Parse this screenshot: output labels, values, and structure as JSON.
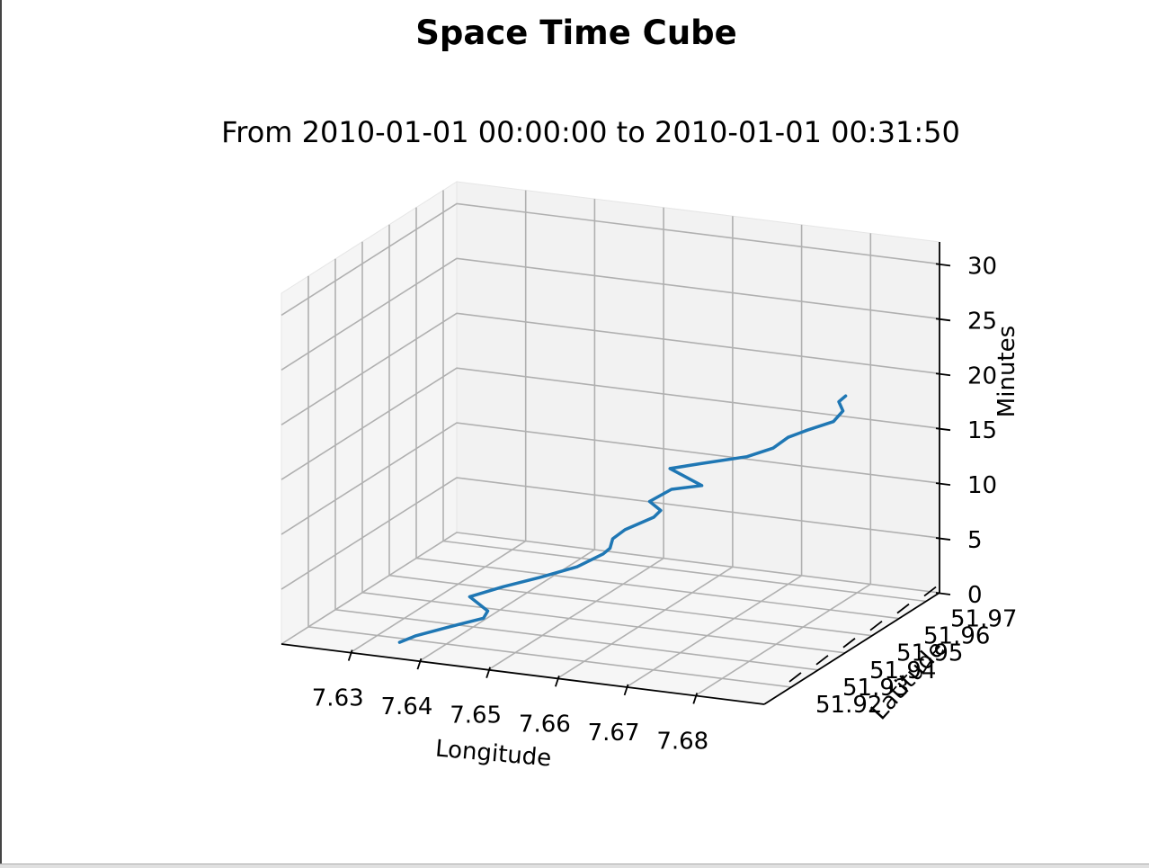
{
  "chart_data": {
    "type": "line",
    "title": "Space Time Cube",
    "subtitle": "From 2010-01-01 00:00:00 to 2010-01-01 00:31:50",
    "xlabel": "Longitude",
    "ylabel": "Latitude",
    "zlabel": "Minutes",
    "xticks": [
      "7.63",
      "7.64",
      "7.65",
      "7.66",
      "7.67",
      "7.68"
    ],
    "yticks": [
      "51.92",
      "51.93",
      "51.94",
      "51.95",
      "51.96",
      "51.97"
    ],
    "zticks": [
      "0",
      "5",
      "10",
      "15",
      "20",
      "25",
      "30"
    ],
    "xlim": [
      7.62,
      7.69
    ],
    "ylim": [
      51.91,
      51.975
    ],
    "zlim": [
      0,
      32
    ],
    "grid": true,
    "series": [
      {
        "color": "#1f77b4",
        "points": [
          [
            7.634,
            51.918,
            0.0
          ],
          [
            7.636,
            51.919,
            0.6
          ],
          [
            7.64,
            51.92,
            1.5
          ],
          [
            7.645,
            51.921,
            2.6
          ],
          [
            7.646,
            51.92,
            3.5
          ],
          [
            7.643,
            51.921,
            4.4
          ],
          [
            7.647,
            51.923,
            5.3
          ],
          [
            7.652,
            51.924,
            6.4
          ],
          [
            7.657,
            51.925,
            7.6
          ],
          [
            7.66,
            51.927,
            8.7
          ],
          [
            7.661,
            51.927,
            9.3
          ],
          [
            7.661,
            51.928,
            10.0
          ],
          [
            7.662,
            51.93,
            10.6
          ],
          [
            7.665,
            51.933,
            11.5
          ],
          [
            7.666,
            51.933,
            12.2
          ],
          [
            7.664,
            51.934,
            12.7
          ],
          [
            7.666,
            51.937,
            13.5
          ],
          [
            7.67,
            51.938,
            14.0
          ],
          [
            7.665,
            51.939,
            15.0
          ],
          [
            7.669,
            51.94,
            15.6
          ],
          [
            7.675,
            51.942,
            16.4
          ],
          [
            7.678,
            51.944,
            17.1
          ],
          [
            7.679,
            51.947,
            17.7
          ],
          [
            7.681,
            51.949,
            18.2
          ],
          [
            7.684,
            51.951,
            18.9
          ],
          [
            7.685,
            51.952,
            19.8
          ],
          [
            7.684,
            51.953,
            20.4
          ],
          [
            7.685,
            51.953,
            21.0
          ]
        ]
      }
    ]
  }
}
